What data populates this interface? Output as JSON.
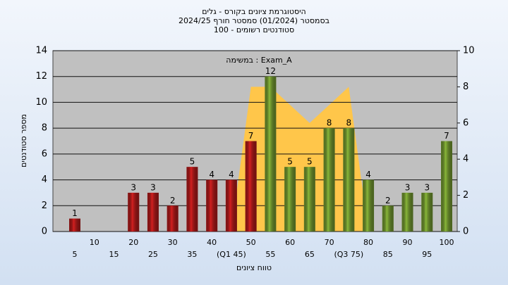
{
  "chart_data": {
    "type": "bar",
    "title": [
      "היסטוגרמת ציונים בקורס - גלים",
      "בסמסטר  (01/2024)  סמסטר חורף 2024/25",
      "סטודנטים רשומים - 100"
    ],
    "annotation": "במשימה : Exam_A",
    "x_label": "טווח ציונים",
    "y_label": "מספר סטודנטים",
    "categories": [
      "5",
      "10",
      "15",
      "20",
      "25",
      "30",
      "35",
      "40",
      "(Q1 45)",
      "50",
      "55",
      "60",
      "65",
      "70",
      "(Q3 75)",
      "80",
      "85",
      "90",
      "95",
      "100"
    ],
    "values": [
      1,
      null,
      null,
      3,
      3,
      2,
      5,
      4,
      4,
      7,
      12,
      5,
      5,
      8,
      8,
      4,
      2,
      3,
      3,
      7
    ],
    "bar_colors": [
      "#d42020",
      "#d42020",
      "#d42020",
      "#d42020",
      "#d42020",
      "#d42020",
      "#d42020",
      "#d42020",
      "#d42020",
      "#d42020",
      "#8ab83a",
      "#8ab83a",
      "#8ab83a",
      "#8ab83a",
      "#8ab83a",
      "#8ab83a",
      "#8ab83a",
      "#8ab83a",
      "#8ab83a",
      "#8ab83a"
    ],
    "area": {
      "axis": "y2",
      "color": "#ffc64a",
      "values": [
        null,
        null,
        null,
        null,
        null,
        null,
        null,
        null,
        0,
        8,
        8,
        7,
        6,
        7,
        8,
        0,
        null,
        null,
        null,
        null
      ]
    },
    "ylim": [
      0,
      14
    ],
    "yticks": [
      0,
      2,
      4,
      6,
      8,
      10,
      12,
      14
    ],
    "y2lim": [
      0,
      10
    ],
    "y2ticks": [
      0,
      2,
      4,
      6,
      8,
      10
    ],
    "grid": true
  }
}
